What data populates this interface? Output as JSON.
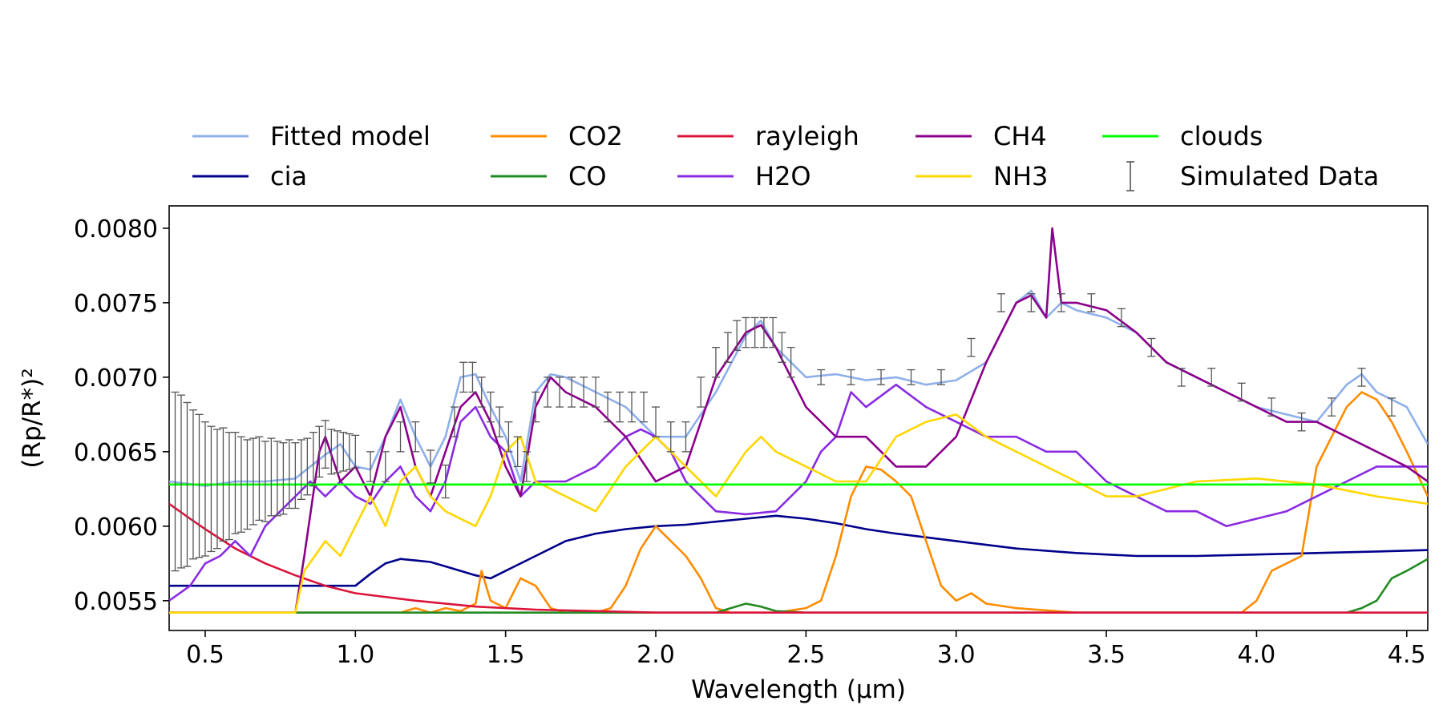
{
  "chart_data": {
    "type": "line",
    "title": "",
    "xlabel": "Wavelength (μm)",
    "ylabel": "(Rp/R*)²",
    "xlim": [
      0.38,
      4.57
    ],
    "ylim": [
      0.0053,
      0.00815
    ],
    "xticks": [
      0.5,
      1.0,
      1.5,
      2.0,
      2.5,
      3.0,
      3.5,
      4.0,
      4.5
    ],
    "xtick_labels": [
      "0.5",
      "1.0",
      "1.5",
      "2.0",
      "2.5",
      "3.0",
      "3.5",
      "4.0",
      "4.5"
    ],
    "yticks": [
      0.0055,
      0.006,
      0.0065,
      0.007,
      0.0075,
      0.008
    ],
    "ytick_labels": [
      "0.0055",
      "0.0060",
      "0.0065",
      "0.0070",
      "0.0075",
      "0.0080"
    ],
    "legend_position": "top, 5 columns",
    "series": [
      {
        "name": "Fitted model",
        "color": "#8fb0ea",
        "x": [
          0.38,
          0.5,
          0.6,
          0.7,
          0.8,
          0.85,
          0.9,
          0.95,
          1.0,
          1.05,
          1.1,
          1.15,
          1.2,
          1.25,
          1.3,
          1.35,
          1.4,
          1.45,
          1.5,
          1.55,
          1.6,
          1.65,
          1.7,
          1.8,
          1.9,
          2.0,
          2.1,
          2.2,
          2.3,
          2.35,
          2.4,
          2.45,
          2.5,
          2.6,
          2.7,
          2.8,
          2.9,
          3.0,
          3.1,
          3.2,
          3.25,
          3.3,
          3.35,
          3.4,
          3.5,
          3.6,
          3.7,
          3.8,
          3.9,
          4.0,
          4.1,
          4.2,
          4.3,
          4.35,
          4.4,
          4.5,
          4.57
        ],
        "y": [
          0.0063,
          0.00627,
          0.0063,
          0.0063,
          0.00632,
          0.0064,
          0.00648,
          0.00655,
          0.0064,
          0.00638,
          0.0066,
          0.00685,
          0.0066,
          0.0064,
          0.0066,
          0.007,
          0.00702,
          0.0068,
          0.0066,
          0.0063,
          0.0069,
          0.00702,
          0.007,
          0.0069,
          0.0068,
          0.0066,
          0.0066,
          0.0069,
          0.00728,
          0.00738,
          0.0072,
          0.0071,
          0.007,
          0.00702,
          0.00698,
          0.007,
          0.00695,
          0.00698,
          0.0071,
          0.0075,
          0.00758,
          0.0074,
          0.0075,
          0.00745,
          0.0074,
          0.0073,
          0.0071,
          0.007,
          0.0069,
          0.0068,
          0.00675,
          0.0067,
          0.00695,
          0.00702,
          0.0069,
          0.0068,
          0.00655
        ]
      },
      {
        "name": "cia",
        "color": "#00008b",
        "x": [
          0.38,
          0.6,
          0.8,
          1.0,
          1.05,
          1.1,
          1.15,
          1.2,
          1.25,
          1.3,
          1.35,
          1.4,
          1.45,
          1.5,
          1.6,
          1.7,
          1.8,
          1.9,
          2.0,
          2.1,
          2.2,
          2.3,
          2.4,
          2.5,
          2.6,
          2.7,
          2.8,
          3.0,
          3.2,
          3.4,
          3.6,
          3.7,
          3.8,
          4.0,
          4.2,
          4.4,
          4.57
        ],
        "y": [
          0.0056,
          0.0056,
          0.0056,
          0.0056,
          0.00568,
          0.00575,
          0.00578,
          0.00577,
          0.00576,
          0.00573,
          0.0057,
          0.00567,
          0.00565,
          0.0057,
          0.0058,
          0.0059,
          0.00595,
          0.00598,
          0.006,
          0.00601,
          0.00603,
          0.00605,
          0.00607,
          0.00605,
          0.00602,
          0.00598,
          0.00595,
          0.0059,
          0.00585,
          0.00582,
          0.0058,
          0.0058,
          0.0058,
          0.00581,
          0.00582,
          0.00583,
          0.00584
        ]
      },
      {
        "name": "CO2",
        "color": "#ff8c00",
        "x": [
          0.38,
          1.15,
          1.2,
          1.25,
          1.3,
          1.35,
          1.4,
          1.42,
          1.45,
          1.5,
          1.55,
          1.6,
          1.65,
          1.7,
          1.8,
          1.85,
          1.9,
          1.95,
          2.0,
          2.05,
          2.1,
          2.15,
          2.2,
          2.25,
          2.3,
          2.4,
          2.5,
          2.55,
          2.6,
          2.65,
          2.7,
          2.75,
          2.8,
          2.85,
          2.9,
          2.95,
          3.0,
          3.05,
          3.1,
          3.2,
          3.4,
          3.6,
          3.8,
          3.95,
          4.0,
          4.05,
          4.1,
          4.15,
          4.2,
          4.25,
          4.3,
          4.35,
          4.4,
          4.45,
          4.5,
          4.57
        ],
        "y": [
          0.00542,
          0.00542,
          0.00545,
          0.00542,
          0.00545,
          0.00543,
          0.00548,
          0.0057,
          0.0055,
          0.00545,
          0.00565,
          0.0056,
          0.00545,
          0.00542,
          0.00542,
          0.00545,
          0.0056,
          0.00585,
          0.006,
          0.0059,
          0.0058,
          0.00565,
          0.00545,
          0.00542,
          0.00542,
          0.00542,
          0.00545,
          0.0055,
          0.0058,
          0.0062,
          0.0064,
          0.00638,
          0.0063,
          0.0062,
          0.0059,
          0.0056,
          0.0055,
          0.00555,
          0.00548,
          0.00545,
          0.00542,
          0.00542,
          0.00542,
          0.00542,
          0.0055,
          0.0057,
          0.00575,
          0.0058,
          0.0064,
          0.0066,
          0.0068,
          0.0069,
          0.00685,
          0.0067,
          0.0065,
          0.0062
        ]
      },
      {
        "name": "CO",
        "color": "#228b22",
        "x": [
          0.38,
          2.2,
          2.3,
          2.35,
          2.4,
          2.5,
          3.0,
          4.3,
          4.35,
          4.4,
          4.45,
          4.5,
          4.57
        ],
        "y": [
          0.00542,
          0.00542,
          0.00548,
          0.00546,
          0.00543,
          0.00542,
          0.00542,
          0.00542,
          0.00545,
          0.0055,
          0.00565,
          0.0057,
          0.00578
        ]
      },
      {
        "name": "rayleigh",
        "color": "#dc143c",
        "x": [
          0.38,
          0.45,
          0.5,
          0.6,
          0.7,
          0.8,
          0.9,
          1.0,
          1.2,
          1.4,
          1.6,
          1.8,
          2.0,
          2.5,
          3.0,
          4.0,
          4.57
        ],
        "y": [
          0.00615,
          0.00605,
          0.00598,
          0.00585,
          0.00575,
          0.00567,
          0.0056,
          0.00555,
          0.0055,
          0.00546,
          0.00544,
          0.00543,
          0.00542,
          0.00542,
          0.00542,
          0.00542,
          0.00542
        ]
      },
      {
        "name": "H2O",
        "color": "#8a2be2",
        "x": [
          0.38,
          0.45,
          0.5,
          0.55,
          0.6,
          0.65,
          0.7,
          0.75,
          0.8,
          0.85,
          0.9,
          0.95,
          1.0,
          1.05,
          1.1,
          1.15,
          1.2,
          1.25,
          1.3,
          1.35,
          1.4,
          1.45,
          1.5,
          1.55,
          1.6,
          1.7,
          1.8,
          1.9,
          1.95,
          2.0,
          2.05,
          2.1,
          2.15,
          2.2,
          2.3,
          2.4,
          2.5,
          2.55,
          2.6,
          2.65,
          2.7,
          2.8,
          2.9,
          3.0,
          3.1,
          3.2,
          3.3,
          3.4,
          3.5,
          3.6,
          3.7,
          3.8,
          3.9,
          4.0,
          4.1,
          4.2,
          4.3,
          4.4,
          4.5,
          4.57
        ],
        "y": [
          0.0055,
          0.0056,
          0.00575,
          0.0058,
          0.0059,
          0.0058,
          0.006,
          0.0061,
          0.0062,
          0.0063,
          0.0062,
          0.0063,
          0.0062,
          0.00615,
          0.0063,
          0.0064,
          0.0062,
          0.0061,
          0.0063,
          0.0067,
          0.0068,
          0.0066,
          0.0065,
          0.0062,
          0.0063,
          0.0063,
          0.0064,
          0.0066,
          0.00665,
          0.0066,
          0.0065,
          0.0063,
          0.0062,
          0.0061,
          0.00608,
          0.0061,
          0.0063,
          0.0065,
          0.0066,
          0.0069,
          0.0068,
          0.00695,
          0.0068,
          0.0067,
          0.0066,
          0.0066,
          0.0065,
          0.0065,
          0.0063,
          0.0062,
          0.0061,
          0.0061,
          0.006,
          0.00605,
          0.0061,
          0.0062,
          0.0063,
          0.0064,
          0.0064,
          0.0064
        ]
      },
      {
        "name": "CH4",
        "color": "#8b008b",
        "x": [
          0.38,
          0.8,
          0.83,
          0.88,
          0.9,
          0.95,
          1.0,
          1.05,
          1.1,
          1.15,
          1.2,
          1.25,
          1.3,
          1.35,
          1.4,
          1.45,
          1.5,
          1.55,
          1.6,
          1.65,
          1.7,
          1.8,
          1.9,
          2.0,
          2.1,
          2.2,
          2.3,
          2.35,
          2.4,
          2.5,
          2.6,
          2.7,
          2.8,
          2.9,
          3.0,
          3.1,
          3.2,
          3.25,
          3.3,
          3.32,
          3.35,
          3.4,
          3.5,
          3.6,
          3.7,
          3.8,
          3.9,
          4.0,
          4.1,
          4.2,
          4.3,
          4.4,
          4.5,
          4.57
        ],
        "y": [
          0.00542,
          0.00542,
          0.0058,
          0.0065,
          0.0066,
          0.0063,
          0.0064,
          0.0062,
          0.0066,
          0.0068,
          0.0064,
          0.0062,
          0.0065,
          0.0068,
          0.0069,
          0.0067,
          0.0064,
          0.0062,
          0.0068,
          0.007,
          0.0069,
          0.0068,
          0.0066,
          0.0063,
          0.0064,
          0.007,
          0.0073,
          0.00735,
          0.0072,
          0.0068,
          0.0066,
          0.0066,
          0.0064,
          0.0064,
          0.0066,
          0.0071,
          0.0075,
          0.00755,
          0.0074,
          0.008,
          0.0075,
          0.0075,
          0.00745,
          0.0073,
          0.0071,
          0.007,
          0.0069,
          0.0068,
          0.0067,
          0.0067,
          0.0066,
          0.0065,
          0.0064,
          0.0063
        ]
      },
      {
        "name": "NH3",
        "color": "#ffd700",
        "x": [
          0.38,
          0.8,
          0.83,
          0.9,
          0.95,
          1.0,
          1.05,
          1.1,
          1.15,
          1.2,
          1.25,
          1.3,
          1.4,
          1.45,
          1.5,
          1.55,
          1.6,
          1.7,
          1.8,
          1.9,
          2.0,
          2.1,
          2.2,
          2.3,
          2.35,
          2.4,
          2.5,
          2.6,
          2.7,
          2.8,
          2.9,
          3.0,
          3.1,
          3.2,
          3.3,
          3.4,
          3.5,
          3.6,
          3.8,
          4.0,
          4.2,
          4.4,
          4.57
        ],
        "y": [
          0.00542,
          0.00542,
          0.0057,
          0.0059,
          0.0058,
          0.006,
          0.0062,
          0.006,
          0.0063,
          0.0064,
          0.0062,
          0.0061,
          0.006,
          0.0062,
          0.0065,
          0.0066,
          0.0063,
          0.0062,
          0.0061,
          0.0064,
          0.0066,
          0.0064,
          0.0062,
          0.0065,
          0.0066,
          0.0065,
          0.0064,
          0.0063,
          0.0063,
          0.0066,
          0.0067,
          0.00675,
          0.0066,
          0.0065,
          0.0064,
          0.0063,
          0.0062,
          0.0062,
          0.0063,
          0.00632,
          0.00628,
          0.0062,
          0.00615
        ]
      },
      {
        "name": "clouds",
        "color": "#00ff00",
        "x": [
          0.38,
          4.57
        ],
        "y": [
          0.00628,
          0.00628
        ]
      }
    ],
    "simulated_data": {
      "name": "Simulated Data",
      "color": "#555555",
      "x": [
        0.4,
        0.42,
        0.44,
        0.46,
        0.48,
        0.5,
        0.52,
        0.54,
        0.56,
        0.58,
        0.6,
        0.62,
        0.64,
        0.66,
        0.68,
        0.7,
        0.72,
        0.74,
        0.76,
        0.78,
        0.8,
        0.82,
        0.84,
        0.86,
        0.88,
        0.9,
        0.92,
        0.94,
        0.96,
        0.98,
        1.0,
        1.05,
        1.1,
        1.15,
        1.2,
        1.25,
        1.3,
        1.33,
        1.36,
        1.39,
        1.42,
        1.45,
        1.48,
        1.51,
        1.54,
        1.57,
        1.6,
        1.64,
        1.68,
        1.72,
        1.76,
        1.8,
        1.84,
        1.88,
        1.92,
        1.96,
        2.0,
        2.05,
        2.1,
        2.15,
        2.2,
        2.24,
        2.27,
        2.3,
        2.33,
        2.36,
        2.39,
        2.42,
        2.45,
        2.55,
        2.65,
        2.75,
        2.85,
        2.95,
        3.05,
        3.15,
        3.25,
        3.35,
        3.45,
        3.55,
        3.65,
        3.75,
        3.85,
        3.95,
        4.05,
        4.15,
        4.25,
        4.35,
        4.45
      ],
      "y": [
        0.0063,
        0.0063,
        0.00628,
        0.00628,
        0.00627,
        0.00625,
        0.00625,
        0.00625,
        0.00628,
        0.00627,
        0.00629,
        0.00628,
        0.00628,
        0.0063,
        0.00632,
        0.0063,
        0.00633,
        0.00632,
        0.00632,
        0.00635,
        0.00634,
        0.00638,
        0.0064,
        0.00645,
        0.0065,
        0.00655,
        0.0065,
        0.0065,
        0.0065,
        0.0065,
        0.0065,
        0.0064,
        0.0064,
        0.0066,
        0.0066,
        0.0064,
        0.0063,
        0.0067,
        0.007,
        0.007,
        0.0069,
        0.0068,
        0.0067,
        0.0066,
        0.0065,
        0.0064,
        0.0068,
        0.0069,
        0.0069,
        0.0069,
        0.0069,
        0.0069,
        0.0068,
        0.0068,
        0.0068,
        0.0068,
        0.0067,
        0.0066,
        0.0066,
        0.0069,
        0.0071,
        0.0072,
        0.00728,
        0.0073,
        0.0073,
        0.0073,
        0.0073,
        0.0072,
        0.0071,
        0.007,
        0.007,
        0.007,
        0.007,
        0.007,
        0.0072,
        0.0075,
        0.0075,
        0.0075,
        0.0075,
        0.0074,
        0.0072,
        0.007,
        0.007,
        0.0069,
        0.0068,
        0.0067,
        0.0068,
        0.007,
        0.0068
      ],
      "err": [
        0.0006,
        0.00058,
        0.00055,
        0.0005,
        0.00048,
        0.00045,
        0.00042,
        0.0004,
        0.00038,
        0.00036,
        0.00034,
        0.00032,
        0.0003,
        0.00029,
        0.00028,
        0.00027,
        0.00026,
        0.00025,
        0.00024,
        0.00023,
        0.00022,
        0.0002,
        0.00019,
        0.00018,
        0.00017,
        0.00016,
        0.00015,
        0.00014,
        0.00013,
        0.00012,
        0.00011,
        0.0001,
        0.0001,
        0.0001,
        0.0001,
        0.00011,
        0.00011,
        0.0001,
        0.0001,
        0.0001,
        0.0001,
        0.0001,
        0.0001,
        0.0001,
        0.0001,
        0.0001,
        0.0001,
        0.0001,
        0.0001,
        0.0001,
        0.0001,
        0.0001,
        0.0001,
        0.0001,
        0.0001,
        0.0001,
        0.0001,
        0.0001,
        0.0001,
        0.0001,
        0.0001,
        0.0001,
        0.0001,
        0.0001,
        0.0001,
        0.0001,
        0.0001,
        0.0001,
        0.0001,
        5e-05,
        5e-05,
        5e-05,
        5e-05,
        5e-05,
        6e-05,
        6e-05,
        6e-05,
        6e-05,
        6e-05,
        6e-05,
        6e-05,
        6e-05,
        6e-05,
        6e-05,
        6e-05,
        6e-05,
        6e-05,
        6e-05,
        6e-05
      ]
    },
    "legend": [
      {
        "label": "Fitted model",
        "color": "#8fb0ea",
        "kind": "line"
      },
      {
        "label": "CO2",
        "color": "#ff8c00",
        "kind": "line"
      },
      {
        "label": "rayleigh",
        "color": "#dc143c",
        "kind": "line"
      },
      {
        "label": "CH4",
        "color": "#8b008b",
        "kind": "line"
      },
      {
        "label": "clouds",
        "color": "#00ff00",
        "kind": "line"
      },
      {
        "label": "cia",
        "color": "#00008b",
        "kind": "line"
      },
      {
        "label": "CO",
        "color": "#228b22",
        "kind": "line"
      },
      {
        "label": "H2O",
        "color": "#8a2be2",
        "kind": "line"
      },
      {
        "label": "NH3",
        "color": "#ffd700",
        "kind": "line"
      },
      {
        "label": "Simulated Data",
        "color": "#555555",
        "kind": "errorbar"
      }
    ]
  }
}
